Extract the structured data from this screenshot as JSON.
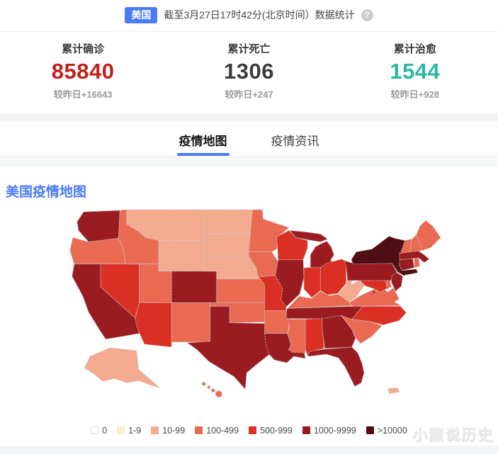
{
  "header": {
    "region_badge": "美国",
    "title": "截至3月27日17时42分(北京时间）数据统计",
    "help_icon": "?"
  },
  "stats": [
    {
      "label": "累计确诊",
      "value": "85840",
      "delta": "较昨日+16643",
      "color": "#c2201a"
    },
    {
      "label": "累计死亡",
      "value": "1306",
      "delta": "较昨日+247",
      "color": "#3b3b3b"
    },
    {
      "label": "累计治愈",
      "value": "1544",
      "delta": "较昨日+928",
      "color": "#2cb7a3"
    }
  ],
  "tabs": [
    {
      "label": "疫情地图",
      "active": true
    },
    {
      "label": "疫情资讯",
      "active": false
    }
  ],
  "map": {
    "title": "美国疫情地图",
    "legend": [
      {
        "label": "0",
        "color": "#ffffff"
      },
      {
        "label": "1-9",
        "color": "#fcf0d2"
      },
      {
        "label": "10-99",
        "color": "#f4ab90"
      },
      {
        "label": "100-499",
        "color": "#eb6a52"
      },
      {
        "label": "500-999",
        "color": "#dc2f23"
      },
      {
        "label": "1000-9999",
        "color": "#9b1c20"
      },
      {
        "label": ">10000",
        "color": "#500e12"
      }
    ],
    "states": [
      {
        "id": "WA",
        "level": 5
      },
      {
        "id": "OR",
        "level": 3
      },
      {
        "id": "CA",
        "level": 5
      },
      {
        "id": "NV",
        "level": 4
      },
      {
        "id": "ID",
        "level": 3
      },
      {
        "id": "MT",
        "level": 2
      },
      {
        "id": "WY",
        "level": 2
      },
      {
        "id": "UT",
        "level": 3
      },
      {
        "id": "CO",
        "level": 5
      },
      {
        "id": "AZ",
        "level": 4
      },
      {
        "id": "NM",
        "level": 3
      },
      {
        "id": "ND",
        "level": 2
      },
      {
        "id": "SD",
        "level": 2
      },
      {
        "id": "NE",
        "level": 2
      },
      {
        "id": "KS",
        "level": 3
      },
      {
        "id": "OK",
        "level": 3
      },
      {
        "id": "TX",
        "level": 5
      },
      {
        "id": "MN",
        "level": 3
      },
      {
        "id": "IA",
        "level": 3
      },
      {
        "id": "MO",
        "level": 4
      },
      {
        "id": "AR",
        "level": 3
      },
      {
        "id": "LA",
        "level": 5
      },
      {
        "id": "WI",
        "level": 4
      },
      {
        "id": "IL",
        "level": 5
      },
      {
        "id": "MI",
        "level": 5
      },
      {
        "id": "IN",
        "level": 4
      },
      {
        "id": "OH",
        "level": 4
      },
      {
        "id": "KY",
        "level": 3
      },
      {
        "id": "TN",
        "level": 5
      },
      {
        "id": "MS",
        "level": 3
      },
      {
        "id": "AL",
        "level": 4
      },
      {
        "id": "GA",
        "level": 5
      },
      {
        "id": "FL",
        "level": 5
      },
      {
        "id": "SC",
        "level": 3
      },
      {
        "id": "NC",
        "level": 4
      },
      {
        "id": "VA",
        "level": 3
      },
      {
        "id": "WV",
        "level": 2
      },
      {
        "id": "MD",
        "level": 4
      },
      {
        "id": "DE",
        "level": 3
      },
      {
        "id": "DC",
        "level": 4
      },
      {
        "id": "PA",
        "level": 5
      },
      {
        "id": "NJ",
        "level": 5
      },
      {
        "id": "NY",
        "level": 6
      },
      {
        "id": "CT",
        "level": 5
      },
      {
        "id": "RI",
        "level": 3
      },
      {
        "id": "MA",
        "level": 5
      },
      {
        "id": "VT",
        "level": 3
      },
      {
        "id": "NH",
        "level": 3
      },
      {
        "id": "ME",
        "level": 3
      },
      {
        "id": "AK",
        "level": 2
      },
      {
        "id": "HI",
        "level": 3
      },
      {
        "id": "PR",
        "level": 2
      }
    ]
  },
  "watermark": "小薰说历史"
}
